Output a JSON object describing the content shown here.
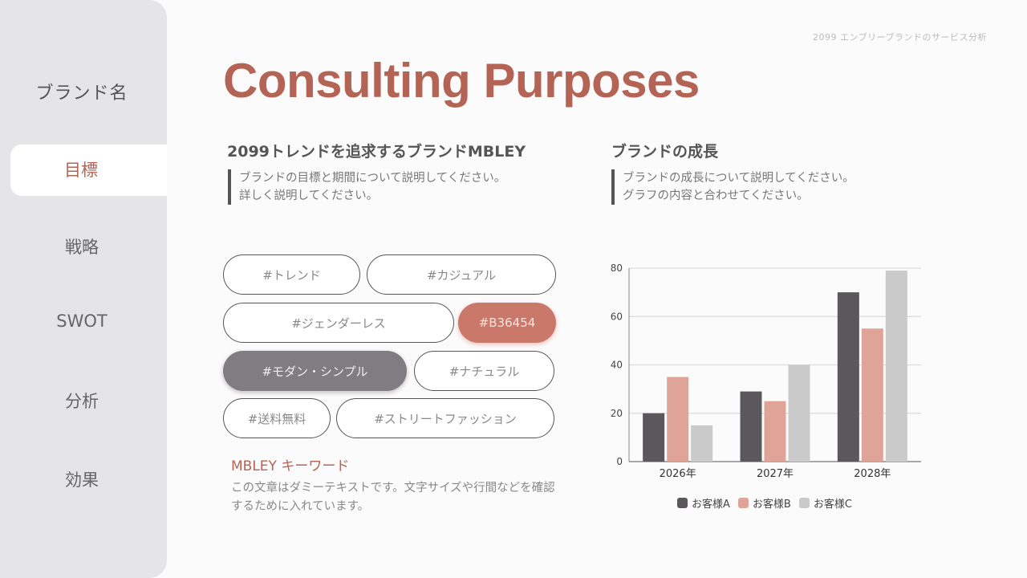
{
  "header": {
    "caption": "2099 エンブリーブランドのサービス分析"
  },
  "sidebar": {
    "brand_name": "ブランド名",
    "items": [
      {
        "label": "目標",
        "active": true
      },
      {
        "label": "戦略",
        "active": false
      },
      {
        "label": "SWOT",
        "active": false
      },
      {
        "label": "分析",
        "active": false
      },
      {
        "label": "効果",
        "active": false
      }
    ]
  },
  "main": {
    "title": "Consulting Purposes",
    "left": {
      "heading": "2099トレンドを追求するブランドMBLEY",
      "description_line1": "ブランドの目標と期間について説明してください。",
      "description_line2": "詳しく説明してください。",
      "tags": [
        "#トレンド",
        "#カジュアル",
        "#ジェンダーレス",
        "#B36454",
        "#モダン・シンプル",
        "#ナチュラル",
        "#送料無料",
        "#ストリートファッション"
      ],
      "keyword_title": "MBLEY キーワード",
      "keyword_body": "この文章はダミーテキストです。文字サイズや行間などを確認するために入れています。"
    },
    "right": {
      "heading": "ブランドの成長",
      "description_line1": "ブランドの成長について説明してください。",
      "description_line2": "グラフの内容と合わせてください。"
    }
  },
  "colors": {
    "accent": "#B36454",
    "series_a": "#5a585b",
    "series_b": "#e0a397",
    "series_c": "#cbcacb",
    "sidebar_bg": "#e5e4e6"
  },
  "chart_data": {
    "type": "bar",
    "title": "",
    "xlabel": "",
    "ylabel": "",
    "categories": [
      "2026年",
      "2027年",
      "2028年"
    ],
    "series": [
      {
        "name": "お客様A",
        "values": [
          20,
          29,
          70
        ],
        "color": "#5a585b"
      },
      {
        "name": "お客様B",
        "values": [
          35,
          25,
          55
        ],
        "color": "#e0a397"
      },
      {
        "name": "お客様C",
        "values": [
          15,
          40,
          79
        ],
        "color": "#cbcacb"
      }
    ],
    "ylim": [
      0,
      80
    ],
    "yticks": [
      0,
      20,
      40,
      60,
      80
    ],
    "grid": true,
    "legend_position": "bottom"
  }
}
